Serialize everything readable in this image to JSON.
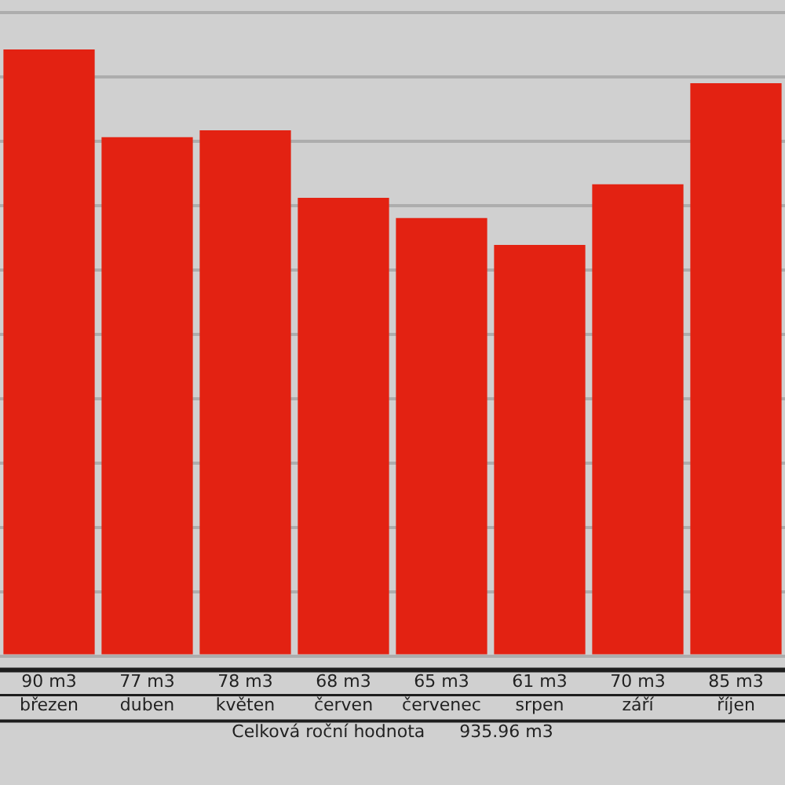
{
  "chart_data": {
    "type": "bar",
    "categories": [
      "březen",
      "duben",
      "květen",
      "červen",
      "červenec",
      "srpen",
      "září",
      "říjen"
    ],
    "values": [
      90,
      77,
      78,
      68,
      65,
      61,
      70,
      85
    ],
    "value_labels": [
      "90 m3",
      "77 m3",
      "78 m3",
      "68 m3",
      "65 m3",
      "61 m3",
      "70 m3",
      "85 m3"
    ],
    "color": "#e32212",
    "annotations": [
      "Celková roční hodnota",
      "935.96 m3"
    ],
    "grid": "y",
    "tick_labels": "x"
  }
}
